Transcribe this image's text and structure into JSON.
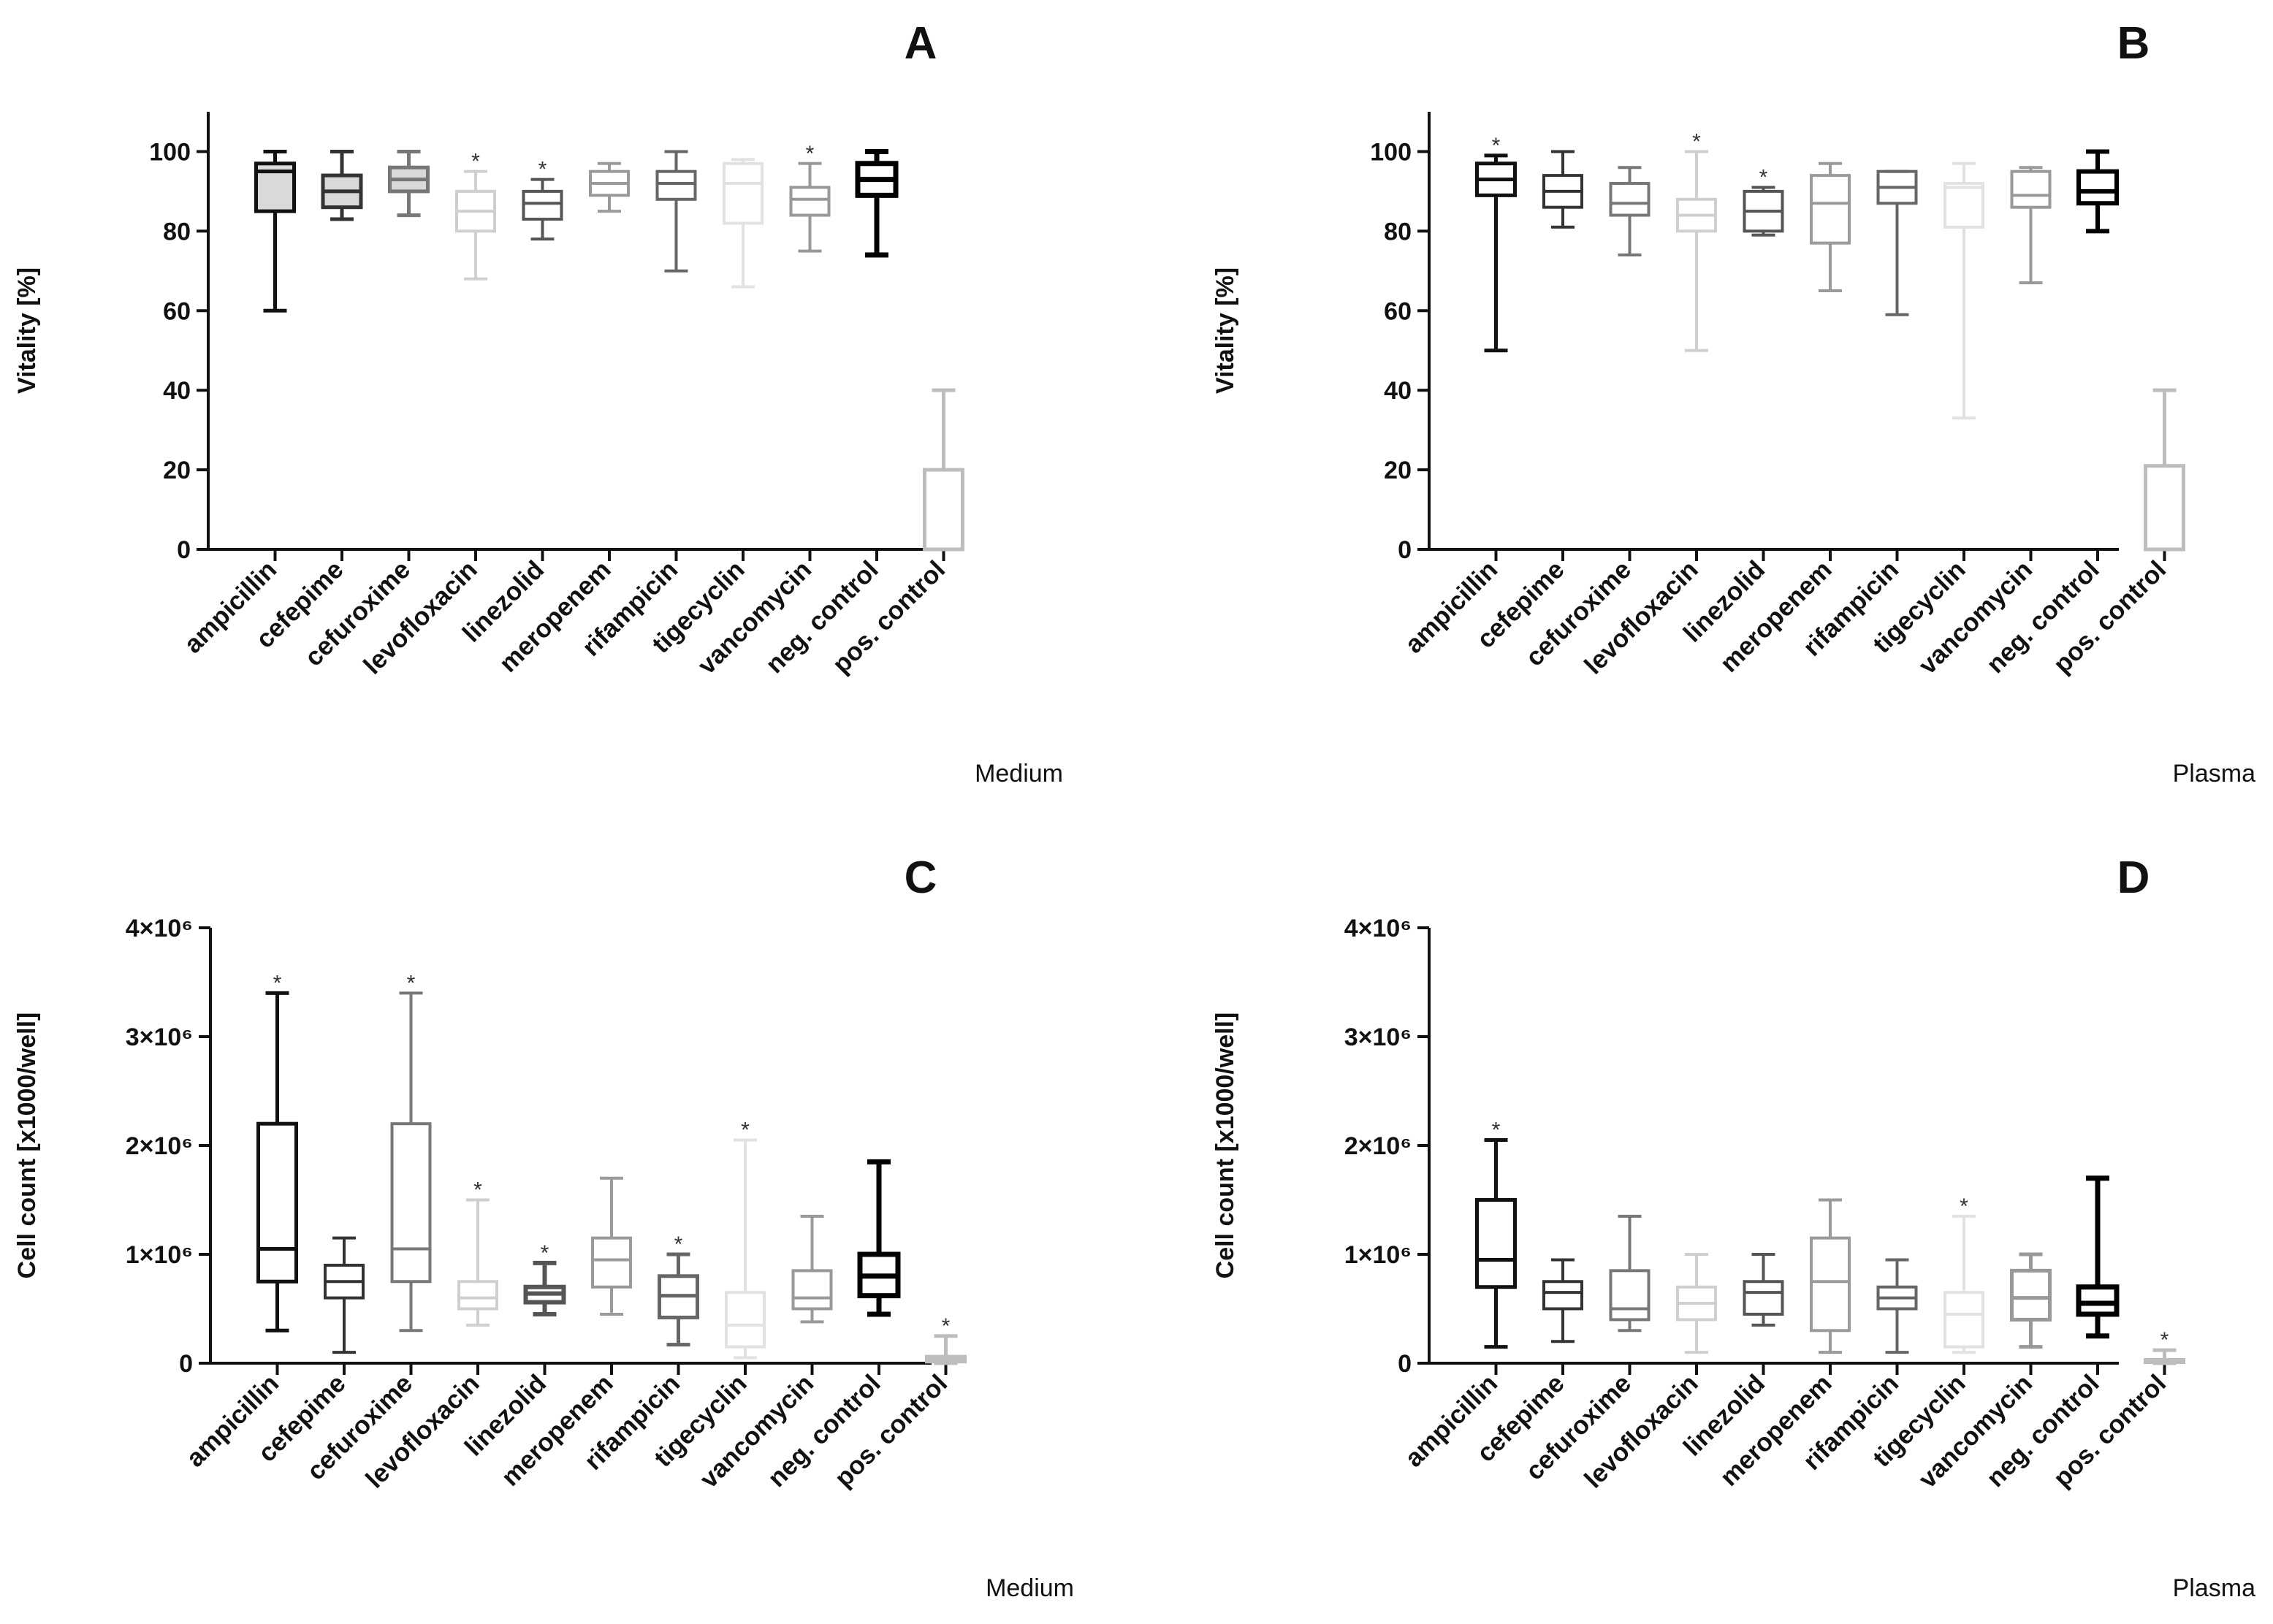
{
  "figure": {
    "categories": [
      "ampicillin",
      "cefepime",
      "cefuroxime",
      "levofloxacin",
      "linezolid",
      "meropenem",
      "rifampicin",
      "tigecyclin",
      "vancomycin",
      "neg. control",
      "pos. control"
    ],
    "colors": {
      "ampicillin": "#111111",
      "cefepime": "#333333",
      "cefuroxime": "#777777",
      "levofloxacin": "#cfcfcf",
      "linezolid": "#555555",
      "meropenem": "#9a9a9a",
      "rifampicin": "#666666",
      "tigecyclin": "#e2e2e2",
      "vancomycin": "#999999",
      "neg. control": "#000000",
      "pos. control": "#bdbdbd"
    }
  },
  "chart_data": [
    {
      "panel": "A",
      "type": "boxplot",
      "condition": "Medium",
      "ylabel": "Vitality [%]",
      "ylim": [
        0,
        110
      ],
      "yticks": [
        0,
        20,
        40,
        60,
        80,
        100
      ],
      "ytick_labels": [
        "0",
        "20",
        "40",
        "60",
        "80",
        "100"
      ],
      "series": [
        {
          "category": "ampicillin",
          "min": 60,
          "q1": 85,
          "median": 95,
          "q3": 97,
          "max": 100,
          "star": false,
          "fill": "#d9d9d9",
          "lw": 5
        },
        {
          "category": "cefepime",
          "min": 83,
          "q1": 86,
          "median": 90,
          "q3": 94,
          "max": 100,
          "star": false,
          "fill": "#d9d9d9",
          "lw": 5
        },
        {
          "category": "cefuroxime",
          "min": 84,
          "q1": 90,
          "median": 93,
          "q3": 96,
          "max": 100,
          "star": false,
          "fill": "#d9d9d9",
          "lw": 5
        },
        {
          "category": "levofloxacin",
          "min": 68,
          "q1": 80,
          "median": 85,
          "q3": 90,
          "max": 95,
          "star": true,
          "fill": "none",
          "lw": 4
        },
        {
          "category": "linezolid",
          "min": 78,
          "q1": 83,
          "median": 87,
          "q3": 90,
          "max": 93,
          "star": true,
          "fill": "none",
          "lw": 4
        },
        {
          "category": "meropenem",
          "min": 85,
          "q1": 89,
          "median": 92,
          "q3": 95,
          "max": 97,
          "star": false,
          "fill": "none",
          "lw": 4
        },
        {
          "category": "rifampicin",
          "min": 70,
          "q1": 88,
          "median": 92,
          "q3": 95,
          "max": 100,
          "star": false,
          "fill": "none",
          "lw": 4
        },
        {
          "category": "tigecyclin",
          "min": 66,
          "q1": 82,
          "median": 92,
          "q3": 97,
          "max": 98,
          "star": false,
          "fill": "none",
          "lw": 4
        },
        {
          "category": "vancomycin",
          "min": 75,
          "q1": 84,
          "median": 88,
          "q3": 91,
          "max": 97,
          "star": true,
          "fill": "none",
          "lw": 4
        },
        {
          "category": "neg. control",
          "min": 74,
          "q1": 89,
          "median": 93,
          "q3": 97,
          "max": 100,
          "star": false,
          "fill": "none",
          "lw": 7
        },
        {
          "category": "pos. control",
          "min": 0,
          "q1": 0,
          "median": 0,
          "q3": 20,
          "max": 40,
          "star": false,
          "fill": "none",
          "lw": 5
        }
      ]
    },
    {
      "panel": "B",
      "type": "boxplot",
      "condition": "Plasma",
      "ylabel": "Vitality [%]",
      "ylim": [
        0,
        110
      ],
      "yticks": [
        0,
        20,
        40,
        60,
        80,
        100
      ],
      "ytick_labels": [
        "0",
        "20",
        "40",
        "60",
        "80",
        "100"
      ],
      "series": [
        {
          "category": "ampicillin",
          "min": 50,
          "q1": 89,
          "median": 93,
          "q3": 97,
          "max": 99,
          "star": true,
          "fill": "none",
          "lw": 5
        },
        {
          "category": "cefepime",
          "min": 81,
          "q1": 86,
          "median": 90,
          "q3": 94,
          "max": 100,
          "star": false,
          "fill": "none",
          "lw": 4
        },
        {
          "category": "cefuroxime",
          "min": 74,
          "q1": 84,
          "median": 87,
          "q3": 92,
          "max": 96,
          "star": false,
          "fill": "none",
          "lw": 4
        },
        {
          "category": "levofloxacin",
          "min": 50,
          "q1": 80,
          "median": 84,
          "q3": 88,
          "max": 100,
          "star": true,
          "fill": "none",
          "lw": 4
        },
        {
          "category": "linezolid",
          "min": 79,
          "q1": 80,
          "median": 85,
          "q3": 90,
          "max": 91,
          "star": true,
          "fill": "none",
          "lw": 4
        },
        {
          "category": "meropenem",
          "min": 65,
          "q1": 77,
          "median": 87,
          "q3": 94,
          "max": 97,
          "star": false,
          "fill": "none",
          "lw": 4
        },
        {
          "category": "rifampicin",
          "min": 59,
          "q1": 87,
          "median": 91,
          "q3": 95,
          "max": 95,
          "star": false,
          "fill": "none",
          "lw": 4
        },
        {
          "category": "tigecyclin",
          "min": 33,
          "q1": 81,
          "median": 91,
          "q3": 92,
          "max": 97,
          "star": false,
          "fill": "none",
          "lw": 4
        },
        {
          "category": "vancomycin",
          "min": 67,
          "q1": 86,
          "median": 89,
          "q3": 95,
          "max": 96,
          "star": false,
          "fill": "none",
          "lw": 4
        },
        {
          "category": "neg. control",
          "min": 80,
          "q1": 87,
          "median": 90,
          "q3": 95,
          "max": 100,
          "star": false,
          "fill": "none",
          "lw": 6
        },
        {
          "category": "pos. control",
          "min": 0,
          "q1": 0,
          "median": 0,
          "q3": 21,
          "max": 40,
          "star": false,
          "fill": "none",
          "lw": 5
        }
      ]
    },
    {
      "panel": "C",
      "type": "boxplot",
      "condition": "Medium",
      "ylabel": "Cell count [x1000/well]",
      "ylim": [
        0,
        4000000
      ],
      "yticks": [
        0,
        1000000,
        2000000,
        3000000,
        4000000
      ],
      "ytick_labels": [
        "0",
        "1×10⁶",
        "2×10⁶",
        "3×10⁶",
        "4×10⁶"
      ],
      "series": [
        {
          "category": "ampicillin",
          "min": 300000,
          "q1": 750000,
          "median": 1050000,
          "q3": 2200000,
          "max": 3400000,
          "star": true,
          "fill": "none",
          "lw": 5
        },
        {
          "category": "cefepime",
          "min": 100000,
          "q1": 600000,
          "median": 750000,
          "q3": 900000,
          "max": 1150000,
          "star": false,
          "fill": "none",
          "lw": 4
        },
        {
          "category": "cefuroxime",
          "min": 300000,
          "q1": 750000,
          "median": 1050000,
          "q3": 2200000,
          "max": 3400000,
          "star": true,
          "fill": "none",
          "lw": 4
        },
        {
          "category": "levofloxacin",
          "min": 350000,
          "q1": 500000,
          "median": 600000,
          "q3": 750000,
          "max": 1500000,
          "star": true,
          "fill": "none",
          "lw": 4
        },
        {
          "category": "linezolid",
          "min": 450000,
          "q1": 560000,
          "median": 640000,
          "q3": 700000,
          "max": 920000,
          "star": true,
          "fill": "none",
          "lw": 6
        },
        {
          "category": "meropenem",
          "min": 450000,
          "q1": 700000,
          "median": 950000,
          "q3": 1150000,
          "max": 1700000,
          "star": false,
          "fill": "none",
          "lw": 4
        },
        {
          "category": "rifampicin",
          "min": 170000,
          "q1": 420000,
          "median": 620000,
          "q3": 800000,
          "max": 1000000,
          "star": true,
          "fill": "none",
          "lw": 5
        },
        {
          "category": "tigecyclin",
          "min": 50000,
          "q1": 150000,
          "median": 350000,
          "q3": 650000,
          "max": 2050000,
          "star": true,
          "fill": "none",
          "lw": 4
        },
        {
          "category": "vancomycin",
          "min": 380000,
          "q1": 500000,
          "median": 600000,
          "q3": 850000,
          "max": 1350000,
          "star": false,
          "fill": "none",
          "lw": 4
        },
        {
          "category": "neg. control",
          "min": 450000,
          "q1": 620000,
          "median": 800000,
          "q3": 1000000,
          "max": 1850000,
          "star": false,
          "fill": "none",
          "lw": 7
        },
        {
          "category": "pos. control",
          "min": 0,
          "q1": 15000,
          "median": 30000,
          "q3": 60000,
          "max": 250000,
          "star": true,
          "fill": "none",
          "lw": 5
        }
      ]
    },
    {
      "panel": "D",
      "type": "boxplot",
      "condition": "Plasma",
      "ylabel": "Cell count [x1000/well]",
      "ylim": [
        0,
        4000000
      ],
      "yticks": [
        0,
        1000000,
        2000000,
        3000000,
        4000000
      ],
      "ytick_labels": [
        "0",
        "1×10⁶",
        "2×10⁶",
        "3×10⁶",
        "4×10⁶"
      ],
      "series": [
        {
          "category": "ampicillin",
          "min": 150000,
          "q1": 700000,
          "median": 950000,
          "q3": 1500000,
          "max": 2050000,
          "star": true,
          "fill": "none",
          "lw": 5
        },
        {
          "category": "cefepime",
          "min": 200000,
          "q1": 500000,
          "median": 650000,
          "q3": 750000,
          "max": 950000,
          "star": false,
          "fill": "none",
          "lw": 4
        },
        {
          "category": "cefuroxime",
          "min": 300000,
          "q1": 400000,
          "median": 500000,
          "q3": 850000,
          "max": 1350000,
          "star": false,
          "fill": "none",
          "lw": 4
        },
        {
          "category": "levofloxacin",
          "min": 100000,
          "q1": 400000,
          "median": 550000,
          "q3": 700000,
          "max": 1000000,
          "star": false,
          "fill": "none",
          "lw": 4
        },
        {
          "category": "linezolid",
          "min": 350000,
          "q1": 450000,
          "median": 650000,
          "q3": 750000,
          "max": 1000000,
          "star": false,
          "fill": "none",
          "lw": 4
        },
        {
          "category": "meropenem",
          "min": 100000,
          "q1": 300000,
          "median": 750000,
          "q3": 1150000,
          "max": 1500000,
          "star": false,
          "fill": "none",
          "lw": 4
        },
        {
          "category": "rifampicin",
          "min": 100000,
          "q1": 500000,
          "median": 600000,
          "q3": 700000,
          "max": 950000,
          "star": false,
          "fill": "none",
          "lw": 4
        },
        {
          "category": "tigecyclin",
          "min": 100000,
          "q1": 150000,
          "median": 450000,
          "q3": 650000,
          "max": 1350000,
          "star": true,
          "fill": "none",
          "lw": 4
        },
        {
          "category": "vancomycin",
          "min": 150000,
          "q1": 400000,
          "median": 600000,
          "q3": 850000,
          "max": 1000000,
          "star": false,
          "fill": "none",
          "lw": 5
        },
        {
          "category": "neg. control",
          "min": 250000,
          "q1": 450000,
          "median": 550000,
          "q3": 700000,
          "max": 1700000,
          "star": false,
          "fill": "none",
          "lw": 7
        },
        {
          "category": "pos. control",
          "min": 0,
          "q1": 10000,
          "median": 20000,
          "q3": 30000,
          "max": 120000,
          "star": true,
          "fill": "none",
          "lw": 5
        }
      ]
    }
  ]
}
